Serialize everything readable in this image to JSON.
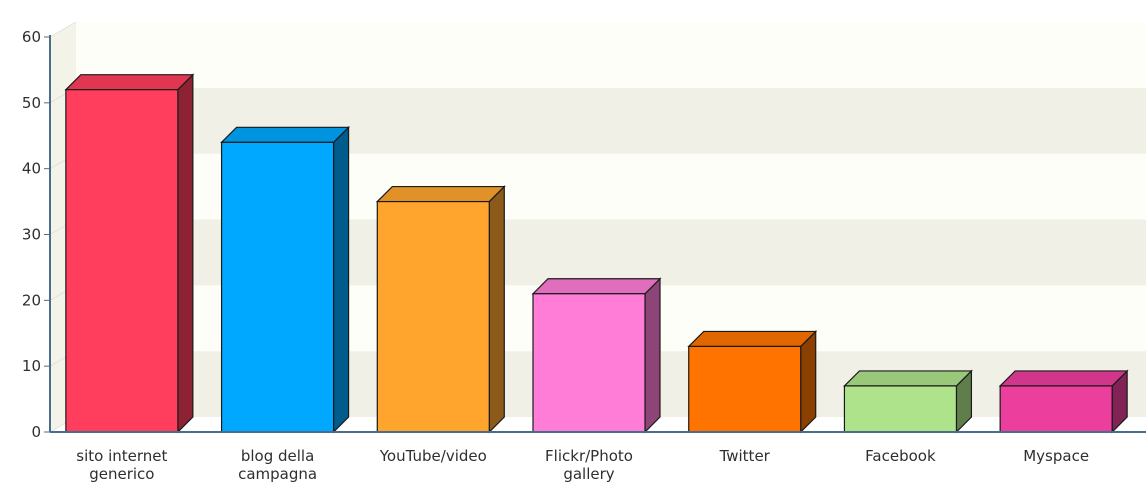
{
  "chart_data": {
    "type": "bar",
    "title": "",
    "xlabel": "",
    "ylabel": "",
    "ylim": [
      0,
      60
    ],
    "yticks": [
      0,
      10,
      20,
      30,
      40,
      50,
      60
    ],
    "grid": true,
    "style": "3d",
    "categories": [
      "sito internet generico",
      "blog della campagna",
      "YouTube/video",
      "Flickr/Photo gallery",
      "Twitter",
      "Facebook",
      "Myspace"
    ],
    "category_lines": [
      [
        "sito internet",
        "generico"
      ],
      [
        "blog della",
        "campagna"
      ],
      [
        "YouTube/video"
      ],
      [
        "Flickr/Photo",
        "gallery"
      ],
      [
        "Twitter"
      ],
      [
        "Facebook"
      ],
      [
        "Myspace"
      ]
    ],
    "values": [
      52,
      44,
      35,
      21,
      13,
      7,
      7
    ],
    "colors": {
      "bars": [
        "#ff3d5c",
        "#00a8ff",
        "#ffa52d",
        "#ff7dd6",
        "#ff7400",
        "#aee38b",
        "#ec3f9d"
      ],
      "band_dark": "#f1f0e6",
      "band_light": "#fefef8",
      "axis": "#4a6d8c"
    }
  }
}
